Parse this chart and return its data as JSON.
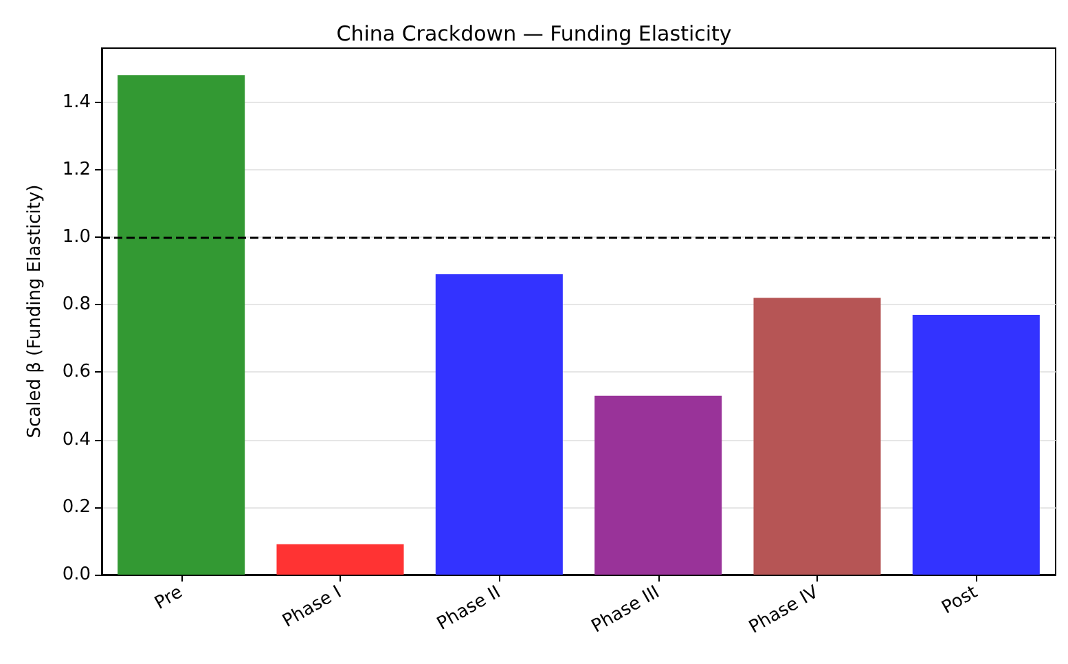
{
  "chart_data": {
    "type": "bar",
    "title": "China Crackdown — Funding Elasticity",
    "ylabel": "Scaled β (Funding Elasticity)",
    "categories": [
      "Pre",
      "Phase I",
      "Phase II",
      "Phase III",
      "Phase IV",
      "Post"
    ],
    "values": [
      1.48,
      0.09,
      0.89,
      0.53,
      0.82,
      0.77
    ],
    "colors": [
      "#339933",
      "#ff3333",
      "#3333ff",
      "#993399",
      "#b65555",
      "#3333ff"
    ],
    "ylim": [
      0,
      1.56
    ],
    "yticks": [
      {
        "value": 0,
        "label": "0.0"
      },
      0.2,
      0.4,
      0.6,
      0.8,
      {
        "value": 1,
        "label": "1.0"
      },
      1.2,
      1.4
    ],
    "grid": "y",
    "ref_lines": [
      {
        "axis": "y",
        "value": 1.0,
        "color": "#000000",
        "line_style": "dashed"
      }
    ]
  }
}
